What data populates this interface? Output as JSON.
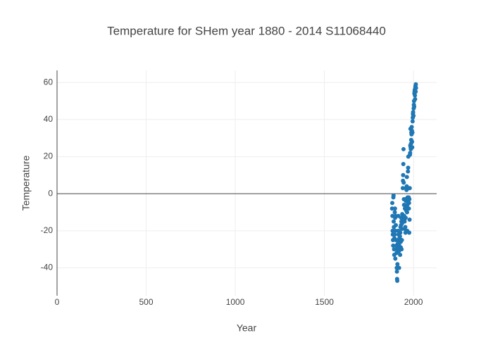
{
  "chart_data": {
    "type": "scatter",
    "title": "Temperature for SHem year 1880 - 2014 S11068440",
    "x_label": "Year",
    "y_label": "Temperature",
    "color": "#1f77b4",
    "grid": true,
    "xlim": [
      0,
      2130
    ],
    "ylim": [
      -55,
      66.5
    ],
    "xticks": [
      0,
      500,
      1000,
      1500,
      2000
    ],
    "yticks": [
      -40,
      -20,
      0,
      20,
      40,
      60
    ],
    "x": [
      1880,
      1881,
      1882,
      1883,
      1884,
      1885,
      1886,
      1887,
      1888,
      1889,
      1890,
      1891,
      1892,
      1893,
      1894,
      1895,
      1896,
      1897,
      1898,
      1899,
      1900,
      1901,
      1902,
      1903,
      1904,
      1905,
      1906,
      1907,
      1908,
      1909,
      1910,
      1911,
      1912,
      1913,
      1914,
      1915,
      1916,
      1917,
      1918,
      1919,
      1920,
      1921,
      1922,
      1923,
      1924,
      1925,
      1926,
      1927,
      1928,
      1929,
      1930,
      1931,
      1932,
      1933,
      1934,
      1935,
      1936,
      1937,
      1938,
      1939,
      1940,
      1941,
      1942,
      1943,
      1944,
      1945,
      1946,
      1947,
      1948,
      1949,
      1950,
      1951,
      1952,
      1953,
      1954,
      1955,
      1956,
      1957,
      1958,
      1959,
      1960,
      1961,
      1962,
      1963,
      1964,
      1965,
      1966,
      1967,
      1968,
      1969,
      1970,
      1971,
      1972,
      1973,
      1974,
      1975,
      1976,
      1977,
      1978,
      1979,
      1980,
      1981,
      1982,
      1983,
      1984,
      1985,
      1986,
      1987,
      1988,
      1989,
      1990,
      1991,
      1992,
      1993,
      1994,
      1995,
      1996,
      1997,
      1998,
      1999,
      2000,
      2001,
      2002,
      2003,
      2004,
      2005,
      2006,
      2007,
      2008,
      2009,
      2010,
      2011,
      2012,
      2013,
      2014
    ],
    "values": [
      -8,
      -5,
      -12,
      -20,
      -22,
      -25,
      -28,
      -2,
      -1,
      -15,
      -18,
      -30,
      -33,
      -24,
      -22,
      -10,
      -8,
      -13,
      -35,
      -20,
      -12,
      -17,
      -25,
      -28,
      -30,
      -32,
      -40,
      -42,
      -46,
      -47,
      -38,
      -30,
      -27,
      -25,
      -20,
      -12,
      -22,
      -29,
      -31,
      -40,
      -28,
      -24,
      -26,
      -30,
      -23,
      -33,
      -21,
      -18,
      -26,
      -29,
      -17,
      -13,
      -15,
      -30,
      -19,
      -25,
      -16,
      -11,
      -13,
      -14,
      3,
      7,
      10,
      16,
      24,
      6,
      -3,
      -6,
      -12,
      -14,
      -15,
      -19,
      -8,
      -3,
      -18,
      -21,
      -13,
      -7,
      -4,
      -9,
      3,
      2,
      4,
      9,
      -10,
      -20,
      -6,
      -2,
      -3,
      12,
      14,
      20,
      3,
      -2,
      -8,
      -5,
      -21,
      -3,
      -14,
      3,
      21,
      22,
      26,
      35,
      25,
      24,
      27,
      29,
      33,
      32,
      36,
      34,
      28,
      25,
      33,
      39,
      41,
      43,
      44,
      42,
      42,
      46,
      48,
      50,
      47,
      54,
      55,
      56,
      53,
      51,
      57,
      58,
      55,
      59,
      57
    ]
  }
}
